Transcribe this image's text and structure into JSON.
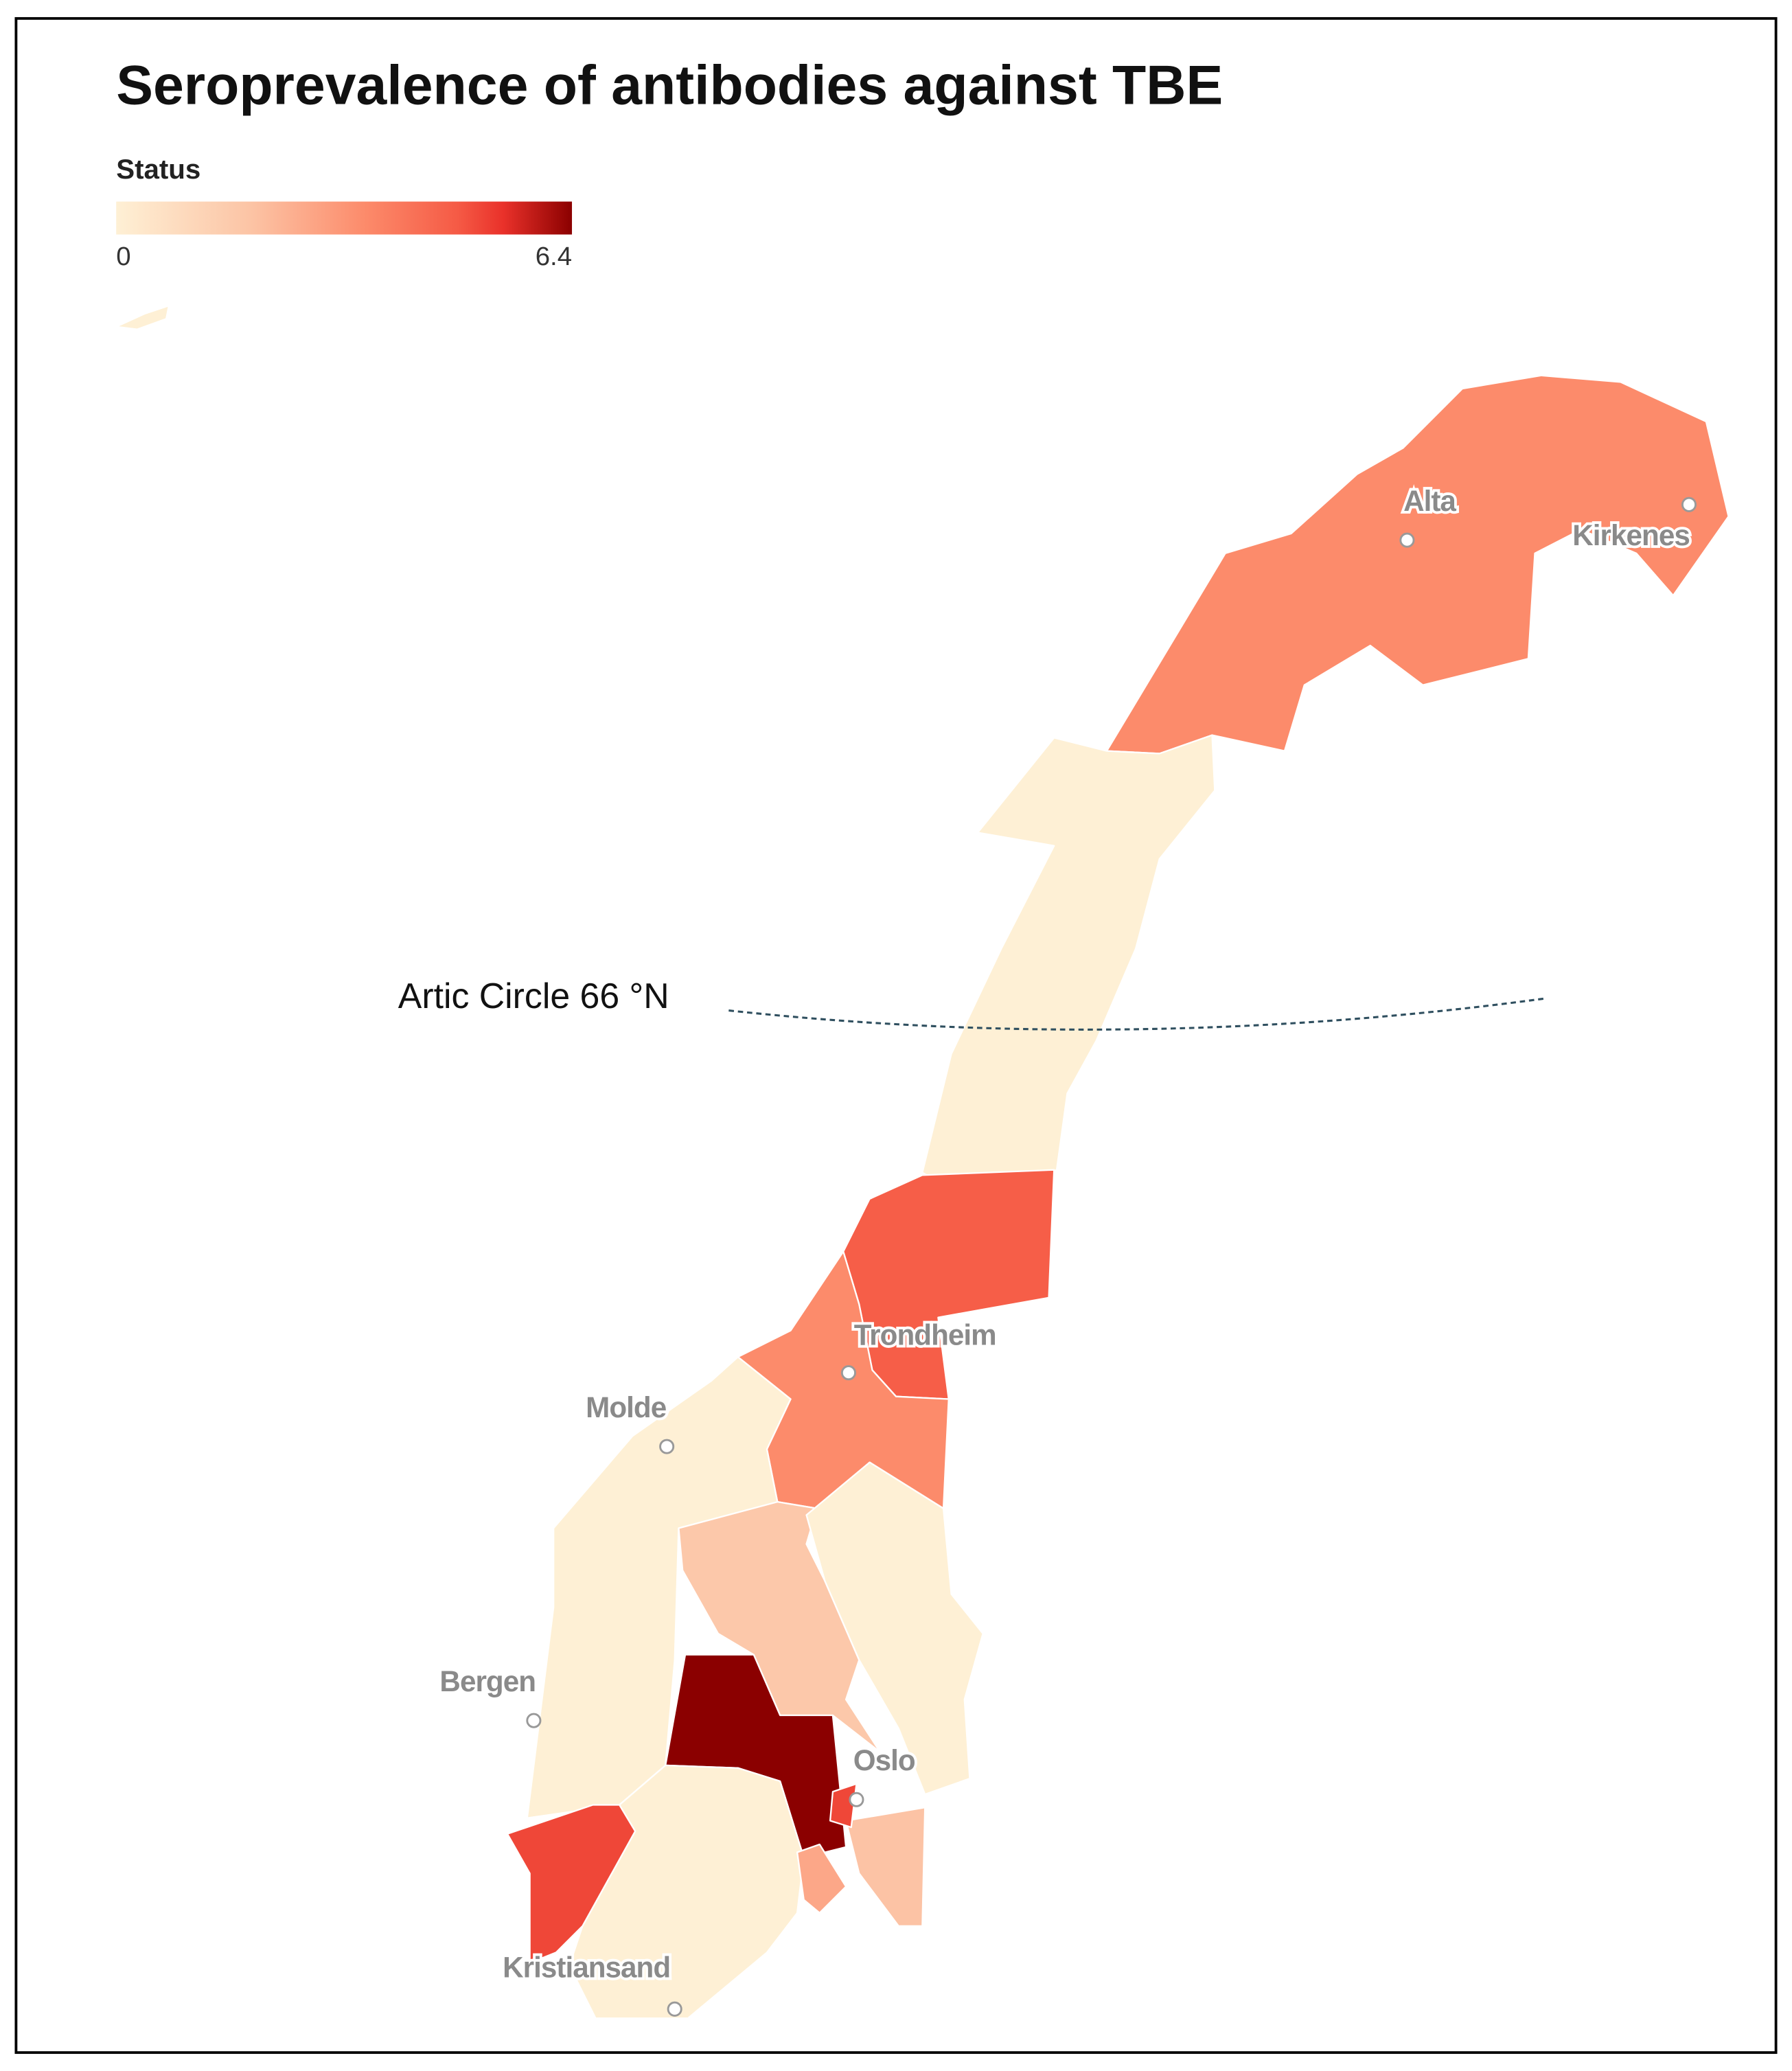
{
  "map": {
    "title": "Seroprevalence of antibodies against TBE",
    "legend": {
      "title": "Status",
      "min": 0,
      "max": 6.4
    },
    "regions": [
      {
        "value": 3.5
      },
      {
        "value": 0
      },
      {
        "value": 4.7
      },
      {
        "value": 3.5
      },
      {
        "value": 0
      },
      {
        "value": 1.7
      },
      {
        "value": 0
      },
      {
        "value": 6.4
      },
      {
        "value": 0
      },
      {
        "value": 5.1
      },
      {
        "value": 2.7
      },
      {
        "value": 1.9
      },
      {
        "value": 5.1
      },
      {
        "value": 0
      }
    ],
    "cities": [
      {
        "label": "Alta"
      },
      {
        "label": "Kirkenes"
      },
      {
        "label": "Trondheim"
      },
      {
        "label": "Molde"
      },
      {
        "label": "Bergen"
      },
      {
        "label": "Oslo"
      },
      {
        "label": "Kristiansand"
      }
    ],
    "annotation": "Artic Circle 66 °N"
  }
}
